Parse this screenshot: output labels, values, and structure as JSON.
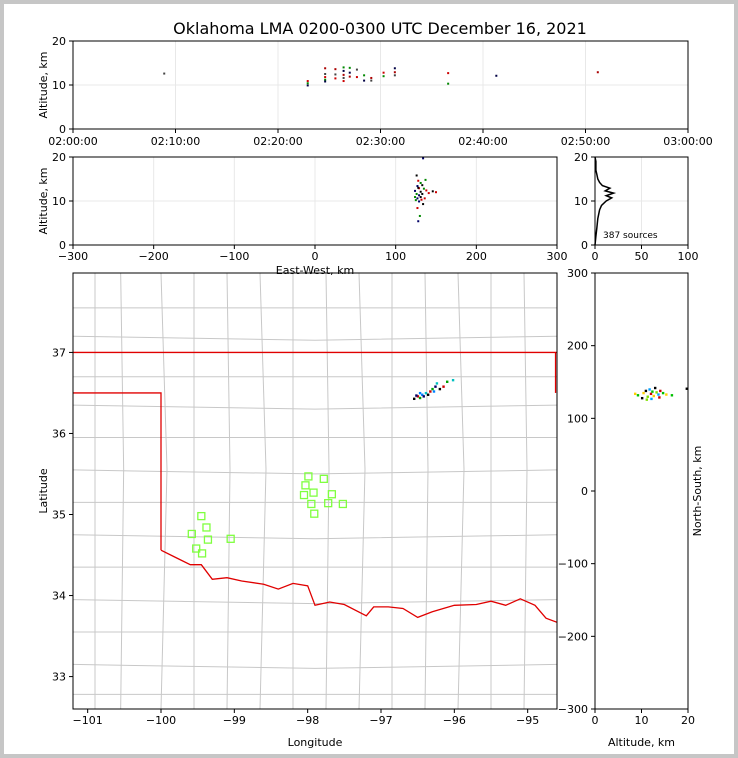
{
  "title": "Oklahoma LMA 0200-0300 UTC December 16, 2021",
  "colors": {
    "county_lines": "#c8c8c8",
    "state_border": "#e00000",
    "station": "#7fff3f",
    "grid": "#e8e8e8"
  },
  "chart_data": [
    {
      "id": "time_altitude",
      "type": "scatter",
      "xlabel": "",
      "ylabel": "Altitude, km",
      "xticks": [
        "02:00:00",
        "02:10:00",
        "02:20:00",
        "02:30:00",
        "02:40:00",
        "02:50:00",
        "03:00:00"
      ],
      "xlim_minutes": [
        0,
        60
      ],
      "yticks": [
        0,
        10,
        20
      ],
      "ylim": [
        0,
        20
      ],
      "points": [
        {
          "t": 8.9,
          "alt": 12.6
        },
        {
          "t": 22.9,
          "alt": 10.9
        },
        {
          "t": 22.9,
          "alt": 10.4
        },
        {
          "t": 22.9,
          "alt": 9.9
        },
        {
          "t": 24.6,
          "alt": 13.8
        },
        {
          "t": 24.6,
          "alt": 12.5
        },
        {
          "t": 24.6,
          "alt": 11.8
        },
        {
          "t": 24.6,
          "alt": 11.2
        },
        {
          "t": 24.6,
          "alt": 10.8
        },
        {
          "t": 25.6,
          "alt": 13.6
        },
        {
          "t": 25.6,
          "alt": 12.4
        },
        {
          "t": 25.6,
          "alt": 11.5
        },
        {
          "t": 26.4,
          "alt": 14.0
        },
        {
          "t": 26.4,
          "alt": 13.2
        },
        {
          "t": 26.4,
          "alt": 12.3
        },
        {
          "t": 26.4,
          "alt": 11.6
        },
        {
          "t": 26.4,
          "alt": 10.9
        },
        {
          "t": 27.0,
          "alt": 13.9
        },
        {
          "t": 27.0,
          "alt": 12.8
        },
        {
          "t": 27.0,
          "alt": 11.9
        },
        {
          "t": 27.7,
          "alt": 13.5
        },
        {
          "t": 27.7,
          "alt": 11.8
        },
        {
          "t": 28.4,
          "alt": 12.2
        },
        {
          "t": 28.4,
          "alt": 11.0
        },
        {
          "t": 29.1,
          "alt": 11.6
        },
        {
          "t": 29.1,
          "alt": 11.0
        },
        {
          "t": 30.3,
          "alt": 12.8
        },
        {
          "t": 30.3,
          "alt": 12.0
        },
        {
          "t": 31.4,
          "alt": 13.8
        },
        {
          "t": 31.4,
          "alt": 12.9
        },
        {
          "t": 31.4,
          "alt": 12.2
        },
        {
          "t": 36.6,
          "alt": 12.7
        },
        {
          "t": 36.6,
          "alt": 10.3
        },
        {
          "t": 41.3,
          "alt": 12.1
        },
        {
          "t": 51.2,
          "alt": 12.9
        }
      ]
    },
    {
      "id": "ew_altitude",
      "type": "scatter",
      "xlabel": "East-West, km",
      "ylabel": "Altitude, km",
      "xticks": [
        -300,
        -200,
        -100,
        0,
        100,
        200,
        300
      ],
      "xlim": [
        -300,
        300
      ],
      "yticks": [
        0,
        10,
        20
      ],
      "ylim": [
        0,
        20
      ],
      "points": [
        {
          "x": 126,
          "alt": 15.8
        },
        {
          "x": 128,
          "alt": 14.6
        },
        {
          "x": 131,
          "alt": 14.1
        },
        {
          "x": 127,
          "alt": 13.4
        },
        {
          "x": 133,
          "alt": 13.6
        },
        {
          "x": 129,
          "alt": 12.9
        },
        {
          "x": 135,
          "alt": 12.8
        },
        {
          "x": 124,
          "alt": 12.3
        },
        {
          "x": 131,
          "alt": 12.1
        },
        {
          "x": 138,
          "alt": 12.4
        },
        {
          "x": 126,
          "alt": 11.6
        },
        {
          "x": 129,
          "alt": 11.3
        },
        {
          "x": 133,
          "alt": 11.6
        },
        {
          "x": 141,
          "alt": 11.8
        },
        {
          "x": 124,
          "alt": 10.9
        },
        {
          "x": 127,
          "alt": 10.6
        },
        {
          "x": 131,
          "alt": 10.9
        },
        {
          "x": 136,
          "alt": 10.6
        },
        {
          "x": 125,
          "alt": 10.2
        },
        {
          "x": 129,
          "alt": 9.9
        },
        {
          "x": 134,
          "alt": 9.3
        },
        {
          "x": 127,
          "alt": 8.4
        },
        {
          "x": 130,
          "alt": 6.6
        },
        {
          "x": 128,
          "alt": 5.4
        },
        {
          "x": 146,
          "alt": 12.2
        },
        {
          "x": 150,
          "alt": 12.0
        },
        {
          "x": 137,
          "alt": 14.8
        },
        {
          "x": 134,
          "alt": 19.7
        },
        {
          "x": 128,
          "alt": 13.0
        },
        {
          "x": 132,
          "alt": 10.3
        }
      ]
    },
    {
      "id": "altitude_histogram",
      "type": "line",
      "xticks": [
        0,
        50,
        100
      ],
      "xlim": [
        0,
        100
      ],
      "yticks": [
        0,
        10,
        20
      ],
      "ylim": [
        0,
        20
      ],
      "annotation": "387 sources",
      "profile": [
        {
          "alt": 0,
          "count": 0
        },
        {
          "alt": 2,
          "count": 1
        },
        {
          "alt": 4,
          "count": 2
        },
        {
          "alt": 6,
          "count": 3
        },
        {
          "alt": 7,
          "count": 4
        },
        {
          "alt": 8,
          "count": 5
        },
        {
          "alt": 9,
          "count": 7
        },
        {
          "alt": 10,
          "count": 12
        },
        {
          "alt": 10.7,
          "count": 18
        },
        {
          "alt": 11.2,
          "count": 12
        },
        {
          "alt": 11.8,
          "count": 20
        },
        {
          "alt": 12.3,
          "count": 11
        },
        {
          "alt": 12.9,
          "count": 16
        },
        {
          "alt": 13.5,
          "count": 8
        },
        {
          "alt": 14.2,
          "count": 5
        },
        {
          "alt": 15,
          "count": 3
        },
        {
          "alt": 16,
          "count": 2
        },
        {
          "alt": 17,
          "count": 1
        },
        {
          "alt": 18,
          "count": 1
        },
        {
          "alt": 19,
          "count": 1
        },
        {
          "alt": 20,
          "count": 0
        }
      ]
    },
    {
      "id": "plan_view",
      "type": "scatter",
      "xlabel": "Longitude",
      "ylabel": "Latitude",
      "xticks": [
        -101,
        -100,
        -99,
        -98,
        -97,
        -96,
        -95
      ],
      "xlim": [
        -101.2,
        -94.6
      ],
      "yticks": [
        33,
        34,
        35,
        36,
        37
      ],
      "ylim": [
        32.6,
        37.98
      ],
      "stations": [
        {
          "lon": -99.45,
          "lat": 34.98
        },
        {
          "lon": -99.58,
          "lat": 34.76
        },
        {
          "lon": -99.38,
          "lat": 34.84
        },
        {
          "lon": -99.36,
          "lat": 34.69
        },
        {
          "lon": -99.05,
          "lat": 34.7
        },
        {
          "lon": -99.52,
          "lat": 34.58
        },
        {
          "lon": -99.44,
          "lat": 34.52
        },
        {
          "lon": -97.99,
          "lat": 35.47
        },
        {
          "lon": -98.03,
          "lat": 35.36
        },
        {
          "lon": -97.78,
          "lat": 35.44
        },
        {
          "lon": -97.92,
          "lat": 35.27
        },
        {
          "lon": -98.05,
          "lat": 35.24
        },
        {
          "lon": -97.67,
          "lat": 35.25
        },
        {
          "lon": -97.95,
          "lat": 35.13
        },
        {
          "lon": -97.72,
          "lat": 35.14
        },
        {
          "lon": -97.52,
          "lat": 35.13
        },
        {
          "lon": -97.91,
          "lat": 35.01
        }
      ],
      "sources": [
        {
          "lon": -96.55,
          "lat": 36.43
        },
        {
          "lon": -96.5,
          "lat": 36.46
        },
        {
          "lon": -96.47,
          "lat": 36.44
        },
        {
          "lon": -96.44,
          "lat": 36.48
        },
        {
          "lon": -96.42,
          "lat": 36.46
        },
        {
          "lon": -96.39,
          "lat": 36.5
        },
        {
          "lon": -96.36,
          "lat": 36.48
        },
        {
          "lon": -96.33,
          "lat": 36.52
        },
        {
          "lon": -96.3,
          "lat": 36.55
        },
        {
          "lon": -96.28,
          "lat": 36.52
        },
        {
          "lon": -96.26,
          "lat": 36.58
        },
        {
          "lon": -96.24,
          "lat": 36.62
        },
        {
          "lon": -96.2,
          "lat": 36.55
        },
        {
          "lon": -96.15,
          "lat": 36.58
        },
        {
          "lon": -96.1,
          "lat": 36.64
        },
        {
          "lon": -96.47,
          "lat": 36.5
        },
        {
          "lon": -96.52,
          "lat": 36.47
        },
        {
          "lon": -96.02,
          "lat": 36.66
        }
      ]
    },
    {
      "id": "altitude_ns",
      "type": "scatter",
      "xlabel": "Altitude, km",
      "ylabel": "North-South, km",
      "xticks": [
        0,
        10,
        20
      ],
      "xlim": [
        0,
        20
      ],
      "yticks": [
        -300,
        -200,
        -100,
        0,
        100,
        200,
        300
      ],
      "ylim": [
        -300,
        300
      ],
      "points": [
        {
          "alt": 9.2,
          "ns": 132
        },
        {
          "alt": 10.4,
          "ns": 135
        },
        {
          "alt": 10.9,
          "ns": 138
        },
        {
          "alt": 11.3,
          "ns": 130
        },
        {
          "alt": 11.7,
          "ns": 140
        },
        {
          "alt": 12.0,
          "ns": 134
        },
        {
          "alt": 12.3,
          "ns": 137
        },
        {
          "alt": 12.6,
          "ns": 131
        },
        {
          "alt": 12.9,
          "ns": 142
        },
        {
          "alt": 13.2,
          "ns": 136
        },
        {
          "alt": 13.6,
          "ns": 133
        },
        {
          "alt": 14.0,
          "ns": 138
        },
        {
          "alt": 14.6,
          "ns": 135
        },
        {
          "alt": 15.3,
          "ns": 133
        },
        {
          "alt": 10.1,
          "ns": 128
        },
        {
          "alt": 11.1,
          "ns": 126
        },
        {
          "alt": 12.1,
          "ns": 127
        },
        {
          "alt": 13.8,
          "ns": 129
        },
        {
          "alt": 16.5,
          "ns": 132
        },
        {
          "alt": 8.6,
          "ns": 134
        },
        {
          "alt": 19.7,
          "ns": 141
        }
      ]
    }
  ]
}
